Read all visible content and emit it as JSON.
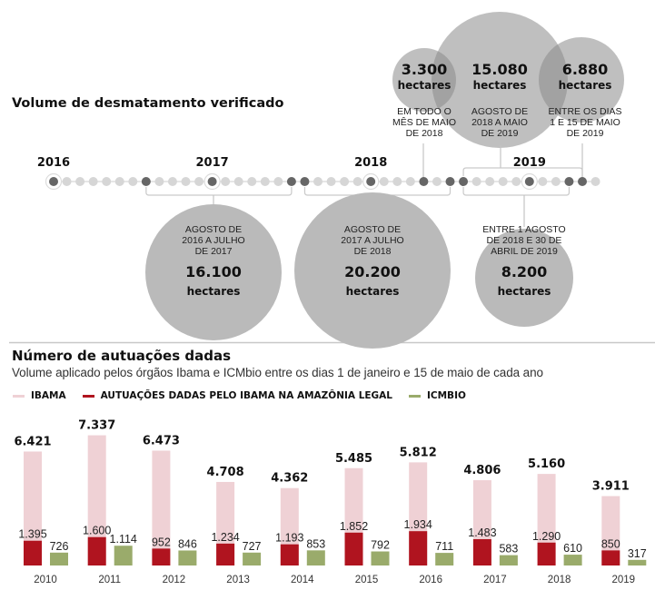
{
  "deforestation": {
    "title": "Volume de desmatamento verificado",
    "timeline": {
      "year_labels": [
        "2016",
        "2017",
        "2018",
        "2019"
      ],
      "year_month_index": [
        0,
        12,
        24,
        36
      ],
      "month_count": 42,
      "highlighted_month_index": [
        0,
        7,
        12,
        18,
        19,
        24,
        28,
        30,
        31,
        36,
        39,
        40
      ],
      "ringed_month_index": [
        0,
        12,
        24,
        36
      ]
    },
    "top_circles": [
      {
        "value": "3.300",
        "unit": "hectares",
        "period": [
          "EM TODO O",
          "MÊS DE MAIO",
          "DE 2018"
        ],
        "hectares": 3300
      },
      {
        "value": "15.080",
        "unit": "hectares",
        "period": [
          "AGOSTO DE",
          "2018 A MAIO",
          "DE 2019"
        ],
        "hectares": 15080
      },
      {
        "value": "6.880",
        "unit": "hectares",
        "period": [
          "ENTRE OS DIAS",
          "1 E 15 DE MAIO",
          "DE 2019"
        ],
        "hectares": 6880
      }
    ],
    "bottom_circles": [
      {
        "value": "16.100",
        "unit": "hectares",
        "period": [
          "AGOSTO DE",
          "2016 A JULHO",
          "DE 2017"
        ],
        "hectares": 16100
      },
      {
        "value": "20.200",
        "unit": "hectares",
        "period": [
          "AGOSTO DE",
          "2017 A JULHO",
          "DE 2018"
        ],
        "hectares": 20200
      },
      {
        "value": "8.200",
        "unit": "hectares",
        "period": [
          "ENTRE 1 AGOSTO",
          "DE 2018 E 30 DE",
          "ABRIL DE 2019"
        ],
        "hectares": 8200
      }
    ]
  },
  "actions": {
    "title": "Número de autuações dadas",
    "subtitle": "Volume aplicado pelos órgãos Ibama e ICMbio entre os dias 1 de janeiro e 15 de maio de cada ano",
    "legend": [
      {
        "label": "IBAMA",
        "color": "#efd1d5"
      },
      {
        "label": "AUTUAÇÕES DADAS PELO IBAMA NA AMAZÔNIA LEGAL",
        "color": "#b0141f"
      },
      {
        "label": "ICMBIO",
        "color": "#9aab6b"
      }
    ]
  },
  "chart_data": {
    "type": "bar",
    "title": "Número de autuações dadas",
    "subtitle": "Volume aplicado pelos órgãos Ibama e ICMbio entre os dias 1 de janeiro e 15 de maio de cada ano",
    "xlabel": "",
    "ylabel": "",
    "categories": [
      "2010",
      "2011",
      "2012",
      "2013",
      "2014",
      "2015",
      "2016",
      "2017",
      "2018",
      "2019"
    ],
    "series": [
      {
        "name": "IBAMA",
        "color": "#efd1d5",
        "values": [
          6421,
          7337,
          6473,
          4708,
          4362,
          5485,
          5812,
          4806,
          5160,
          3911
        ],
        "labels": [
          "6.421",
          "7.337",
          "6.473",
          "4.708",
          "4.362",
          "5.485",
          "5.812",
          "4.806",
          "5.160",
          "3.911"
        ]
      },
      {
        "name": "AUTUAÇÕES DADAS PELO IBAMA NA AMAZÔNIA LEGAL",
        "color": "#b0141f",
        "values": [
          1395,
          1600,
          952,
          1234,
          1193,
          1852,
          1934,
          1483,
          1290,
          850
        ],
        "labels": [
          "1.395",
          "1.600",
          "952",
          "1.234",
          "1.193",
          "1.852",
          "1.934",
          "1.483",
          "1.290",
          "850"
        ]
      },
      {
        "name": "ICMBIO",
        "color": "#9aab6b",
        "values": [
          726,
          1114,
          846,
          727,
          853,
          792,
          711,
          583,
          610,
          317
        ],
        "labels": [
          "726",
          "1.114",
          "846",
          "727",
          "853",
          "792",
          "711",
          "583",
          "610",
          "317"
        ]
      }
    ],
    "ylim": [
      0,
      8000
    ],
    "grid": false,
    "legend_position": "top-left"
  }
}
